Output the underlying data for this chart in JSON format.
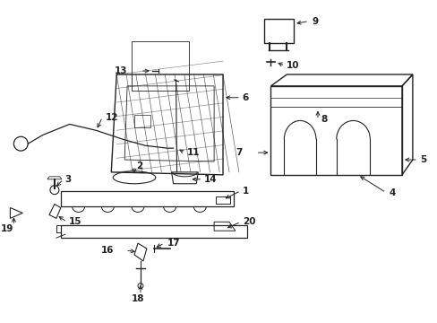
{
  "bg_color": "#ffffff",
  "line_color": "#222222",
  "fig_width": 4.89,
  "fig_height": 3.6,
  "dpi": 100,
  "label_fontsize": 7.5
}
